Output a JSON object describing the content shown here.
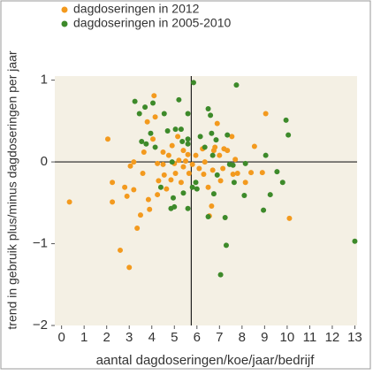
{
  "chart_data": {
    "type": "scatter",
    "xlabel": "aantal dagdoseringen/koe/jaar/bedrijf",
    "ylabel": "trend in gebruik plus/minus dagdoseringen per jaar",
    "xlim": [
      -0.3,
      13.1
    ],
    "ylim": [
      -2,
      1.05
    ],
    "xticks": [
      0,
      1,
      2,
      3,
      4,
      5,
      6,
      7,
      8,
      9,
      10,
      11,
      12,
      13
    ],
    "yticks": [
      {
        "value": -2,
        "label": "−2"
      },
      {
        "value": -1,
        "label": "−1"
      },
      0,
      1
    ],
    "crosshair": {
      "x": 5.75,
      "y": 0
    },
    "legend": "top-left",
    "series": [
      {
        "name": "dagdoseringen in 2012",
        "color": "#f39a1e",
        "x": [
          0.35,
          2.05,
          2.25,
          2.25,
          2.6,
          3.0,
          2.8,
          2.9,
          3.05,
          3.2,
          3.35,
          3.5,
          3.2,
          3.6,
          3.65,
          3.8,
          3.85,
          3.9,
          4.05,
          4.1,
          4.15,
          4.25,
          4.3,
          4.25,
          4.5,
          4.5,
          4.55,
          4.65,
          4.75,
          4.85,
          4.9,
          5.0,
          5.05,
          5.15,
          5.2,
          5.3,
          5.4,
          5.4,
          5.5,
          5.6,
          5.65,
          5.8,
          5.95,
          6.1,
          6.25,
          6.35,
          6.5,
          6.55,
          6.65,
          6.7,
          6.8,
          6.9,
          7.0,
          7.05,
          7.15,
          7.2,
          7.55,
          7.7,
          7.8,
          8.15,
          8.4,
          8.55,
          8.9,
          9.05,
          10.1,
          6.75,
          7.35,
          6.3,
          7.6
        ],
        "y": [
          -0.49,
          0.28,
          -0.25,
          -0.49,
          -1.08,
          -1.29,
          -0.31,
          -0.42,
          -0.05,
          -0.34,
          -0.81,
          -0.65,
          0.0,
          -0.14,
          0.12,
          0.49,
          -0.46,
          -0.58,
          0.28,
          0.81,
          0.55,
          -0.02,
          -0.23,
          -0.4,
          -0.03,
          0.12,
          -0.16,
          -0.33,
          0.08,
          -0.22,
          0.2,
          -0.02,
          -0.14,
          0.31,
          0.02,
          -0.25,
          0.14,
          -0.06,
          0.01,
          0.09,
          -0.14,
          -0.03,
          0.08,
          -0.08,
          0.16,
          0.0,
          -0.31,
          -0.66,
          -0.54,
          -0.1,
          0.18,
          0.47,
          0.08,
          -0.23,
          -0.08,
          0.16,
          0.31,
          0.03,
          -0.14,
          -0.25,
          -0.13,
          0.19,
          -0.13,
          0.59,
          -0.69,
          0.14,
          0.14,
          -0.15,
          -0.15
        ]
      },
      {
        "name": "dagdoseringen in 2005-2010",
        "color": "#3d8a2a",
        "x": [
          3.25,
          3.45,
          3.7,
          3.75,
          3.55,
          3.95,
          4.05,
          4.15,
          4.4,
          4.55,
          4.7,
          4.85,
          4.95,
          5.0,
          5.05,
          5.3,
          5.2,
          5.35,
          5.4,
          5.6,
          5.6,
          5.6,
          5.85,
          5.95,
          6.0,
          6.15,
          6.5,
          6.5,
          6.6,
          6.65,
          6.7,
          6.75,
          6.85,
          6.9,
          7.25,
          7.3,
          7.35,
          7.45,
          7.65,
          7.75,
          7.05,
          7.6,
          8.15,
          8.1,
          8.95,
          9.05,
          9.25,
          9.55,
          9.8,
          9.95,
          10.05,
          13.0,
          6.35,
          5.8,
          4.9,
          5.6
        ],
        "y": [
          0.74,
          0.59,
          0.67,
          0.22,
          0.25,
          0.35,
          0.72,
          0.18,
          -0.31,
          0.59,
          0.38,
          -0.57,
          -0.44,
          -0.55,
          0.4,
          0.4,
          0.76,
          0.25,
          -0.38,
          -0.57,
          0.22,
          0.59,
          0.97,
          -0.25,
          -0.33,
          0.31,
          -0.67,
          0.65,
          0.57,
          0.35,
          0.08,
          -0.39,
          0.27,
          -0.16,
          -0.68,
          -1.02,
          0.33,
          -0.03,
          -0.25,
          0.94,
          -1.38,
          -0.04,
          -0.02,
          -0.41,
          -0.59,
          0.08,
          -0.4,
          -0.12,
          -0.25,
          0.51,
          0.33,
          -0.97,
          0.18,
          -0.31,
          0.0,
          0.28
        ]
      }
    ]
  }
}
